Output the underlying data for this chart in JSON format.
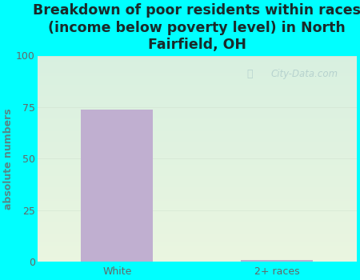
{
  "categories": [
    "White",
    "2+ races"
  ],
  "values": [
    74,
    1
  ],
  "bar_color": "#c0afd0",
  "title": "Breakdown of poor residents within races\n(income below poverty level) in North\nFairfield, OH",
  "ylabel": "absolute numbers",
  "ylim": [
    0,
    100
  ],
  "yticks": [
    0,
    25,
    50,
    75,
    100
  ],
  "background_color": "#00ffff",
  "plot_bg_color": "#e8f5e9",
  "title_fontsize": 12.5,
  "title_color": "#1a2a2a",
  "ylabel_color": "#558888",
  "tick_color": "#666666",
  "tick_fontsize": 9,
  "ylabel_fontsize": 9,
  "watermark": "City-Data.com",
  "grid_color": "#ccddcc",
  "grid_alpha": 0.5
}
